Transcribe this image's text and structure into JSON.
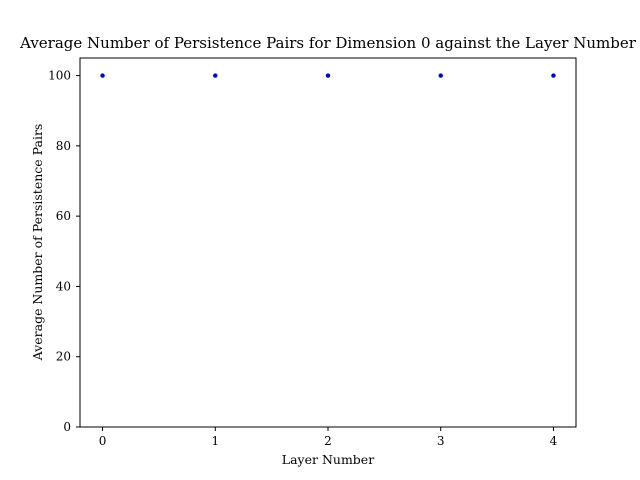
{
  "chart_data": {
    "type": "scatter",
    "title": "Average Number of Persistence Pairs for Dimension 0 against the Layer Number",
    "xlabel": "Layer Number",
    "ylabel": "Average Number of Persistence Pairs",
    "x": [
      0,
      1,
      2,
      3,
      4
    ],
    "y": [
      100,
      100,
      100,
      100,
      100
    ],
    "xlim": [
      -0.2,
      4.2
    ],
    "ylim": [
      0,
      105
    ],
    "xticks": [
      0,
      1,
      2,
      3,
      4
    ],
    "yticks": [
      0,
      20,
      40,
      60,
      80,
      100
    ],
    "xtick_labels": [
      "0",
      "1",
      "2",
      "3",
      "4"
    ],
    "ytick_labels": [
      "0",
      "20",
      "40",
      "60",
      "80",
      "100"
    ],
    "marker_color": "#0000cc",
    "grid": false
  }
}
